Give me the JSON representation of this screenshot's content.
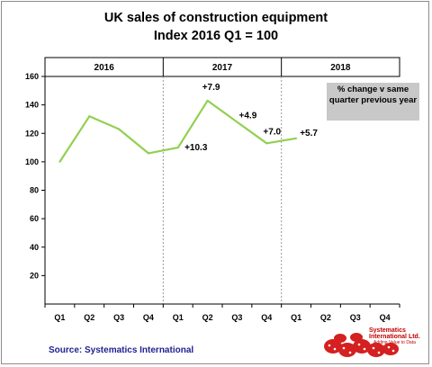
{
  "chart_data": {
    "type": "line",
    "title": "UK sales of construction equipment",
    "subtitle": "Index 2016 Q1 = 100",
    "categories": [
      "Q1",
      "Q2",
      "Q3",
      "Q4",
      "Q1",
      "Q2",
      "Q3",
      "Q4",
      "Q1",
      "Q2",
      "Q3",
      "Q4"
    ],
    "years": [
      "2016",
      "2017",
      "2018"
    ],
    "series": [
      {
        "values": [
          100,
          132,
          123,
          106,
          110,
          143,
          128,
          113,
          116.5,
          null,
          null,
          null
        ]
      }
    ],
    "y_ticks": [
      "20",
      "40",
      "60",
      "80",
      "100",
      "120",
      "140",
      "160"
    ],
    "ylim": [
      0,
      160
    ],
    "y_step": 20,
    "annotation_box": "% change v same quarter previous year",
    "data_labels": [
      {
        "index": 4,
        "text": "+10.3"
      },
      {
        "index": 5,
        "text": "+7.9"
      },
      {
        "index": 6,
        "text": "+4.9"
      },
      {
        "index": 7,
        "text": "+7.0"
      },
      {
        "index": 8,
        "text": "+5.7"
      }
    ],
    "line_color": "#92d050",
    "grid": false,
    "source": "Source: Systematics International"
  },
  "logo": {
    "name": "Systematics International Ltd.",
    "tagline": "Adding Value to Data"
  }
}
